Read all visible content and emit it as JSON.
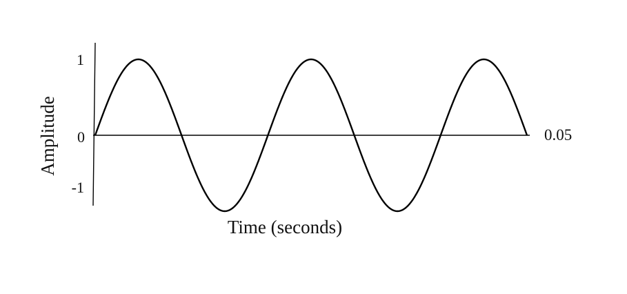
{
  "chart_data": {
    "type": "line",
    "title": "",
    "xlabel": "Time (seconds)",
    "ylabel": "Amplitude",
    "y_ticks": [
      "1",
      "0",
      "-1"
    ],
    "x_end_label": "0.05",
    "xlim": [
      0,
      0.05
    ],
    "ylim": [
      -1,
      1
    ],
    "grid": false,
    "series": [
      {
        "function": "sine",
        "amplitude": 1,
        "cycles": 2.5,
        "color": "#000000"
      }
    ]
  }
}
